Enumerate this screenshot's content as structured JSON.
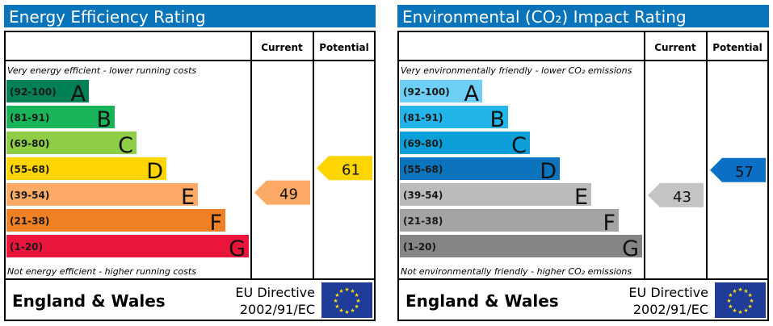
{
  "chart_data": [
    {
      "type": "bar",
      "title": "Energy Efficiency Rating",
      "columns": [
        "Current",
        "Potential"
      ],
      "top_note": "Very energy efficient - lower running costs",
      "bottom_note": "Not energy efficient - higher running costs",
      "bands": [
        {
          "range": "(92-100)",
          "letter": "A",
          "color": "#008054"
        },
        {
          "range": "(81-91)",
          "letter": "B",
          "color": "#19b459"
        },
        {
          "range": "(69-80)",
          "letter": "C",
          "color": "#8dce46"
        },
        {
          "range": "(55-68)",
          "letter": "D",
          "color": "#ffd500"
        },
        {
          "range": "(39-54)",
          "letter": "E",
          "color": "#fcaa65"
        },
        {
          "range": "(21-38)",
          "letter": "F",
          "color": "#ef8023"
        },
        {
          "range": "(1-20)",
          "letter": "G",
          "color": "#e9153b"
        }
      ],
      "current": {
        "value": 49,
        "band": "E",
        "color": "#fcaa65"
      },
      "potential": {
        "value": 61,
        "band": "D",
        "color": "#ffd500"
      },
      "footer": {
        "region": "England & Wales",
        "directive_line1": "EU Directive",
        "directive_line2": "2002/91/EC"
      }
    },
    {
      "type": "bar",
      "title": "Environmental (CO₂) Impact Rating",
      "columns": [
        "Current",
        "Potential"
      ],
      "top_note": "Very environmentally friendly - lower CO₂ emissions",
      "bottom_note": "Not environmentally friendly - higher CO₂ emissions",
      "bands": [
        {
          "range": "(92-100)",
          "letter": "A",
          "color": "#6dcff6"
        },
        {
          "range": "(81-91)",
          "letter": "B",
          "color": "#22b5e9"
        },
        {
          "range": "(69-80)",
          "letter": "C",
          "color": "#0c9fd8"
        },
        {
          "range": "(55-68)",
          "letter": "D",
          "color": "#0b74bc"
        },
        {
          "range": "(39-54)",
          "letter": "E",
          "color": "#bbbbbb"
        },
        {
          "range": "(21-38)",
          "letter": "F",
          "color": "#a3a3a3"
        },
        {
          "range": "(1-20)",
          "letter": "G",
          "color": "#858585"
        }
      ],
      "current": {
        "value": 43,
        "band": "E",
        "color": "#c4c4c4"
      },
      "potential": {
        "value": 57,
        "band": "D",
        "color": "#0b6fc5"
      },
      "footer": {
        "region": "England & Wales",
        "directive_line1": "EU Directive",
        "directive_line2": "2002/91/EC"
      }
    }
  ],
  "colors": {
    "title_bar": "#0a74bb",
    "eu_flag": "#1f3c99",
    "eu_stars": "#ffdd00"
  }
}
